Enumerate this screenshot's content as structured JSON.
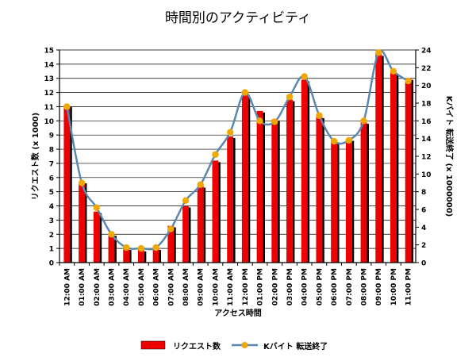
{
  "chart_data": {
    "type": "bar+line",
    "title": "時間別のアクティビティ",
    "xlabel": "アクセス時間",
    "ylabel_left": "リクエスト数 (x 1000)",
    "ylabel_right": "Kバイト 転送終了 (x 1000000)",
    "categories": [
      "12:00 AM",
      "01:00 AM",
      "02:00 AM",
      "03:00 AM",
      "04:00 AM",
      "05:00 AM",
      "06:00 AM",
      "07:00 AM",
      "08:00 AM",
      "09:00 AM",
      "10:00 AM",
      "11:00 AM",
      "12:00 PM",
      "01:00 PM",
      "02:00 PM",
      "03:00 PM",
      "04:00 PM",
      "05:00 PM",
      "06:00 PM",
      "07:00 PM",
      "08:00 PM",
      "09:00 PM",
      "10:00 PM",
      "11:00 PM"
    ],
    "left_axis": {
      "min": 0,
      "max": 15,
      "ticks": [
        0,
        1,
        2,
        3,
        4,
        5,
        6,
        7,
        8,
        9,
        10,
        11,
        12,
        13,
        14,
        15
      ]
    },
    "right_axis": {
      "min": 0,
      "max": 24,
      "ticks": [
        0,
        2,
        4,
        6,
        8,
        10,
        12,
        14,
        16,
        18,
        20,
        22,
        24
      ]
    },
    "series": [
      {
        "name": "リクエスト数",
        "type": "bar",
        "axis": "left",
        "color": "#ee0000",
        "values": [
          11.1,
          5.7,
          3.6,
          2.0,
          1.0,
          0.9,
          1.0,
          2.6,
          4.0,
          5.4,
          7.2,
          8.9,
          11.8,
          10.7,
          10.1,
          11.5,
          12.9,
          10.3,
          8.6,
          8.7,
          9.9,
          14.7,
          13.4,
          13.0
        ]
      },
      {
        "name": "Kバイト 転送終了",
        "type": "line",
        "axis": "right",
        "color": "#5b88b0",
        "marker_color": "#f0a800",
        "values": [
          17.6,
          9.0,
          6.2,
          3.2,
          1.7,
          1.6,
          1.7,
          3.8,
          7.0,
          8.8,
          12.2,
          14.7,
          19.2,
          16.0,
          15.9,
          18.7,
          21.0,
          16.6,
          13.7,
          13.8,
          16.0,
          23.7,
          21.6,
          20.5
        ]
      }
    ],
    "grid": true,
    "legend_position": "bottom"
  }
}
